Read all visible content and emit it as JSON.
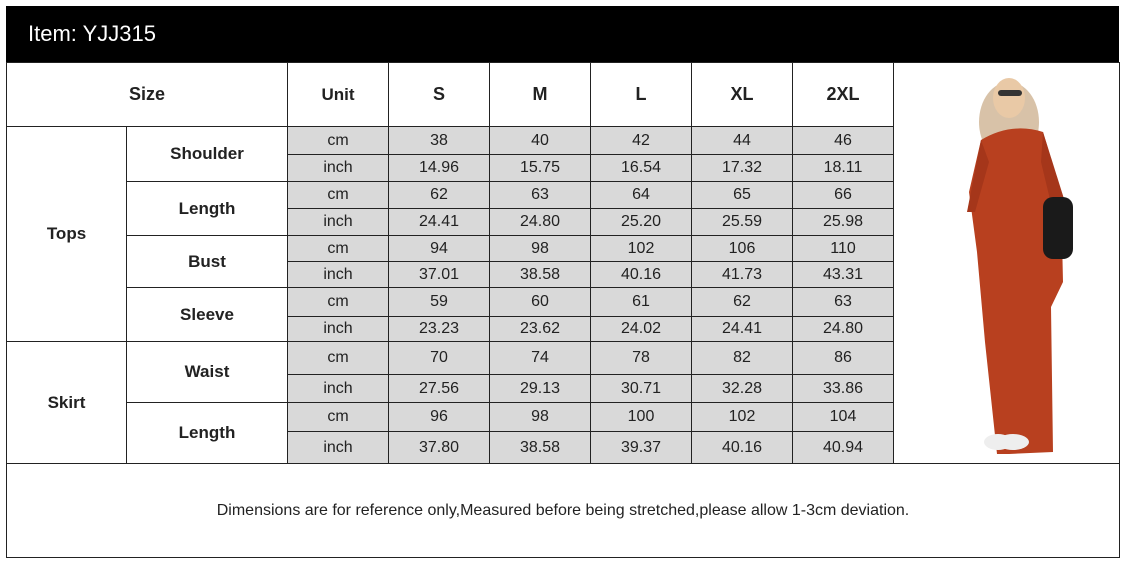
{
  "header": {
    "title": "Item: YJJ315"
  },
  "table": {
    "size_label": "Size",
    "unit_label": "Unit",
    "sizes": [
      "S",
      "M",
      "L",
      "XL",
      "2XL"
    ],
    "groups": [
      {
        "label": "Tops",
        "measures": [
          {
            "label": "Shoulder",
            "rows": [
              {
                "unit": "cm",
                "values": [
                  "38",
                  "40",
                  "42",
                  "44",
                  "46"
                ]
              },
              {
                "unit": "inch",
                "values": [
                  "14.96",
                  "15.75",
                  "16.54",
                  "17.32",
                  "18.11"
                ]
              }
            ]
          },
          {
            "label": "Length",
            "rows": [
              {
                "unit": "cm",
                "values": [
                  "62",
                  "63",
                  "64",
                  "65",
                  "66"
                ]
              },
              {
                "unit": "inch",
                "values": [
                  "24.41",
                  "24.80",
                  "25.20",
                  "25.59",
                  "25.98"
                ]
              }
            ]
          },
          {
            "label": "Bust",
            "rows": [
              {
                "unit": "cm",
                "values": [
                  "94",
                  "98",
                  "102",
                  "106",
                  "110"
                ]
              },
              {
                "unit": "inch",
                "values": [
                  "37.01",
                  "38.58",
                  "40.16",
                  "41.73",
                  "43.31"
                ]
              }
            ]
          },
          {
            "label": "Sleeve",
            "rows": [
              {
                "unit": "cm",
                "values": [
                  "59",
                  "60",
                  "61",
                  "62",
                  "63"
                ]
              },
              {
                "unit": "inch",
                "values": [
                  "23.23",
                  "23.62",
                  "24.02",
                  "24.41",
                  "24.80"
                ]
              }
            ]
          }
        ]
      },
      {
        "label": "Skirt",
        "measures": [
          {
            "label": "Waist",
            "rows": [
              {
                "unit": "cm",
                "values": [
                  "70",
                  "74",
                  "78",
                  "82",
                  "86"
                ]
              },
              {
                "unit": "inch",
                "values": [
                  "27.56",
                  "29.13",
                  "30.71",
                  "32.28",
                  "33.86"
                ]
              }
            ]
          },
          {
            "label": "Length",
            "rows": [
              {
                "unit": "cm",
                "values": [
                  "96",
                  "98",
                  "100",
                  "102",
                  "104"
                ]
              },
              {
                "unit": "inch",
                "values": [
                  "37.80",
                  "38.58",
                  "39.37",
                  "40.16",
                  "40.94"
                ]
              }
            ]
          }
        ]
      }
    ]
  },
  "note": "Dimensions are for reference only,Measured before being stretched,please allow 1-3cm deviation."
}
